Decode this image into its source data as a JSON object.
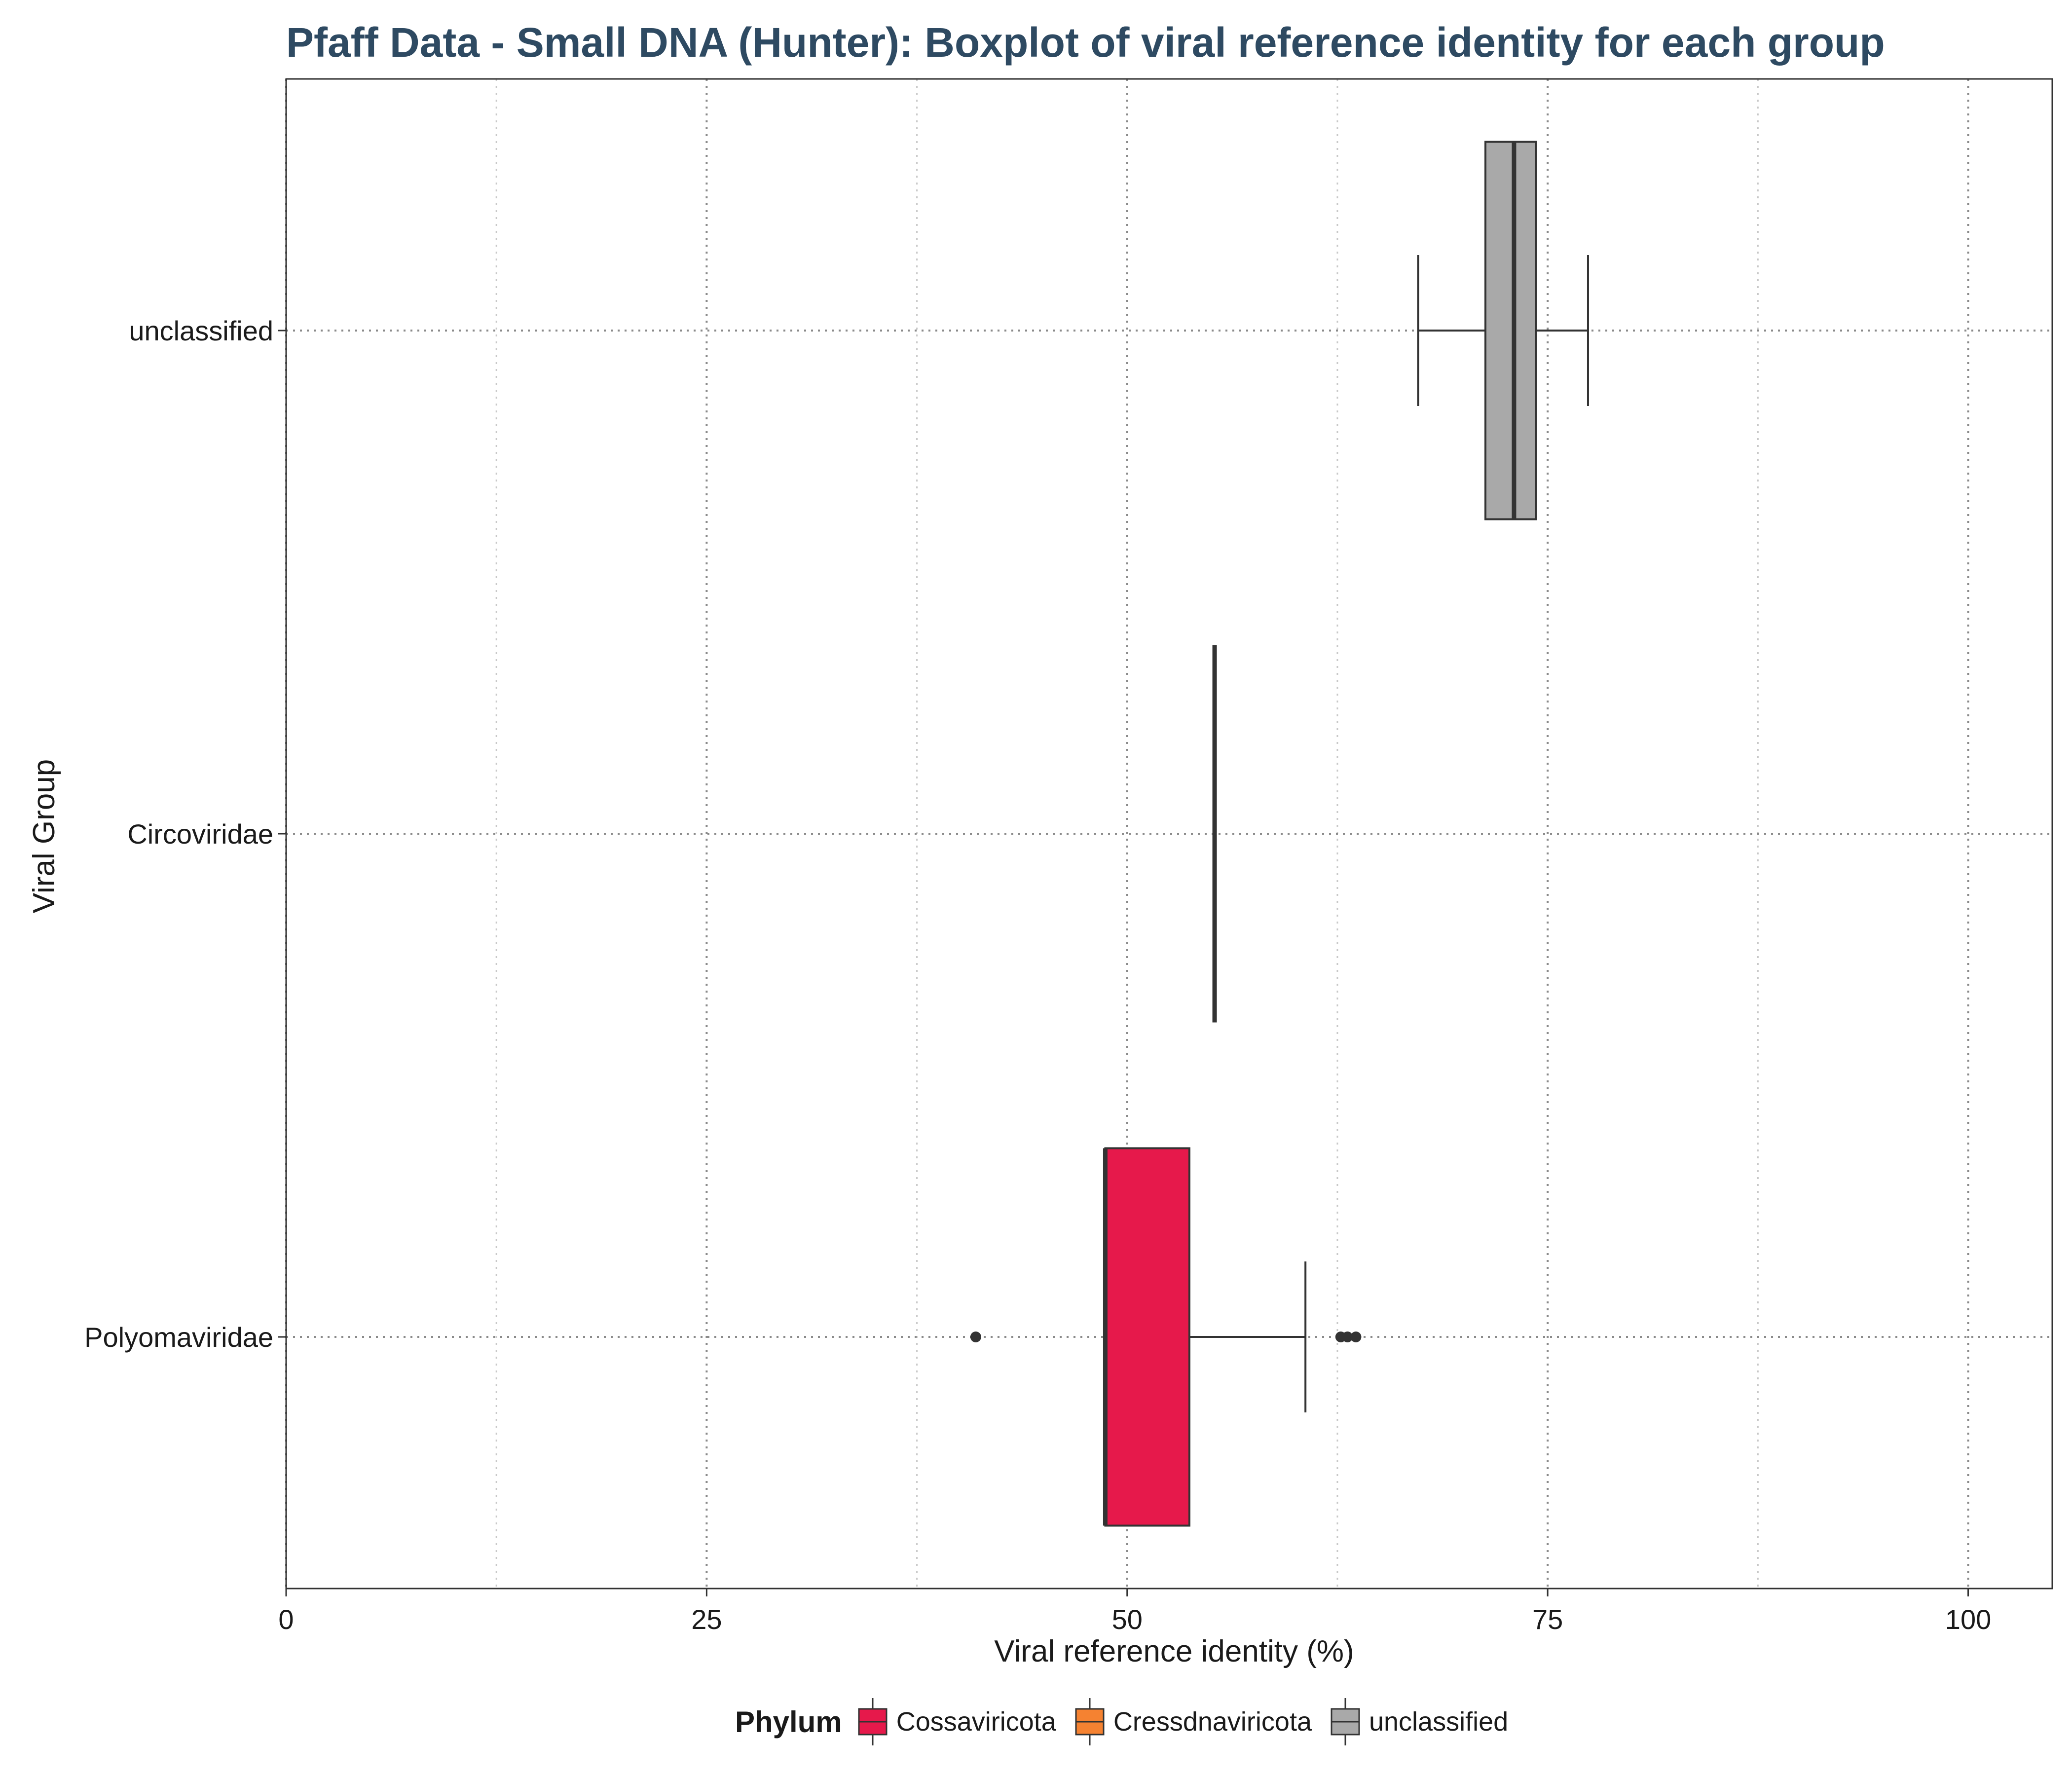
{
  "chart_data": {
    "type": "boxplot",
    "title": "Pfaff Data - Small DNA (Hunter): Boxplot of viral reference identity for each group",
    "xlabel": "Viral reference identity (%)",
    "ylabel": "Viral Group",
    "xlim": [
      0,
      105
    ],
    "x_ticks": [
      {
        "value": 0,
        "label": "0"
      },
      {
        "value": 25,
        "label": "25"
      },
      {
        "value": 50,
        "label": "50"
      },
      {
        "value": 75,
        "label": "75"
      },
      {
        "value": 100,
        "label": "100"
      }
    ],
    "categories": [
      "unclassified",
      "Circoviridae",
      "Polyomaviridae"
    ],
    "grid": true,
    "legend": {
      "title": "Phylum",
      "position": "bottom",
      "items": [
        {
          "label": "Cossaviricota",
          "color": "#e6194b"
        },
        {
          "label": "Cressdnaviricota",
          "color": "#f58231"
        },
        {
          "label": "unclassified",
          "color": "#a9a9a9"
        }
      ]
    },
    "boxes": [
      {
        "group": "unclassified",
        "phylum": "unclassified",
        "color": "#a9a9a9",
        "whisker_low": 67.3,
        "q1": 71.3,
        "median": 73.0,
        "q3": 74.3,
        "whisker_high": 77.4,
        "outliers": []
      },
      {
        "group": "Circoviridae",
        "phylum": "Cressdnaviricota",
        "color": "#f58231",
        "whisker_low": 55.2,
        "q1": 55.2,
        "median": 55.2,
        "q3": 55.2,
        "whisker_high": 55.2,
        "outliers": []
      },
      {
        "group": "Polyomaviridae",
        "phylum": "Cossaviricota",
        "color": "#e6194b",
        "whisker_low": 48.7,
        "q1": 48.7,
        "median": 48.7,
        "q3": 53.7,
        "whisker_high": 60.6,
        "outliers": [
          41.0,
          62.7,
          63.1,
          63.6
        ]
      }
    ]
  }
}
